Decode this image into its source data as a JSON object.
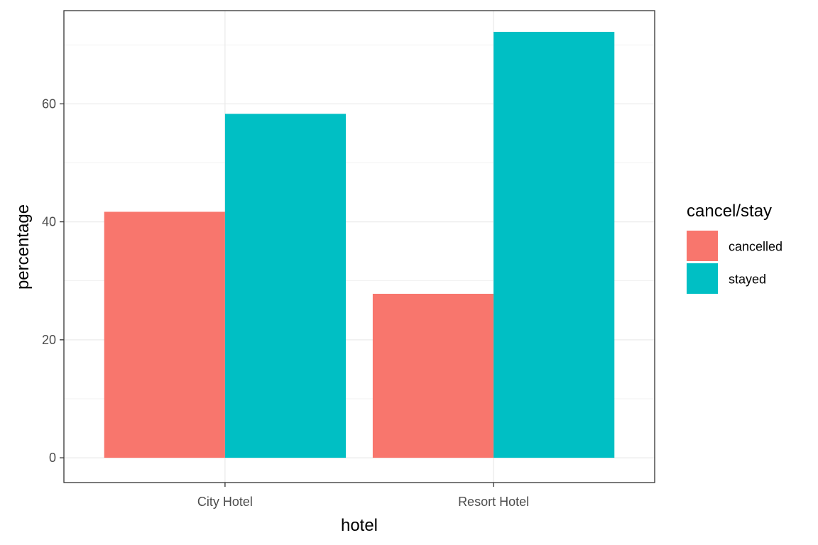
{
  "chart_data": {
    "type": "bar",
    "title": "",
    "xlabel": "hotel",
    "ylabel": "percentage",
    "categories": [
      "City Hotel",
      "Resort Hotel"
    ],
    "series": [
      {
        "name": "cancelled",
        "values": [
          41.7,
          27.8
        ],
        "color": "#F8766D"
      },
      {
        "name": "stayed",
        "values": [
          58.3,
          72.2
        ],
        "color": "#00BFC4"
      }
    ],
    "ylim": [
      -4.2,
      75.8
    ],
    "yticks": [
      0,
      20,
      40,
      60
    ],
    "grid": true,
    "legend": {
      "title": "cancel/stay",
      "position": "right"
    }
  }
}
